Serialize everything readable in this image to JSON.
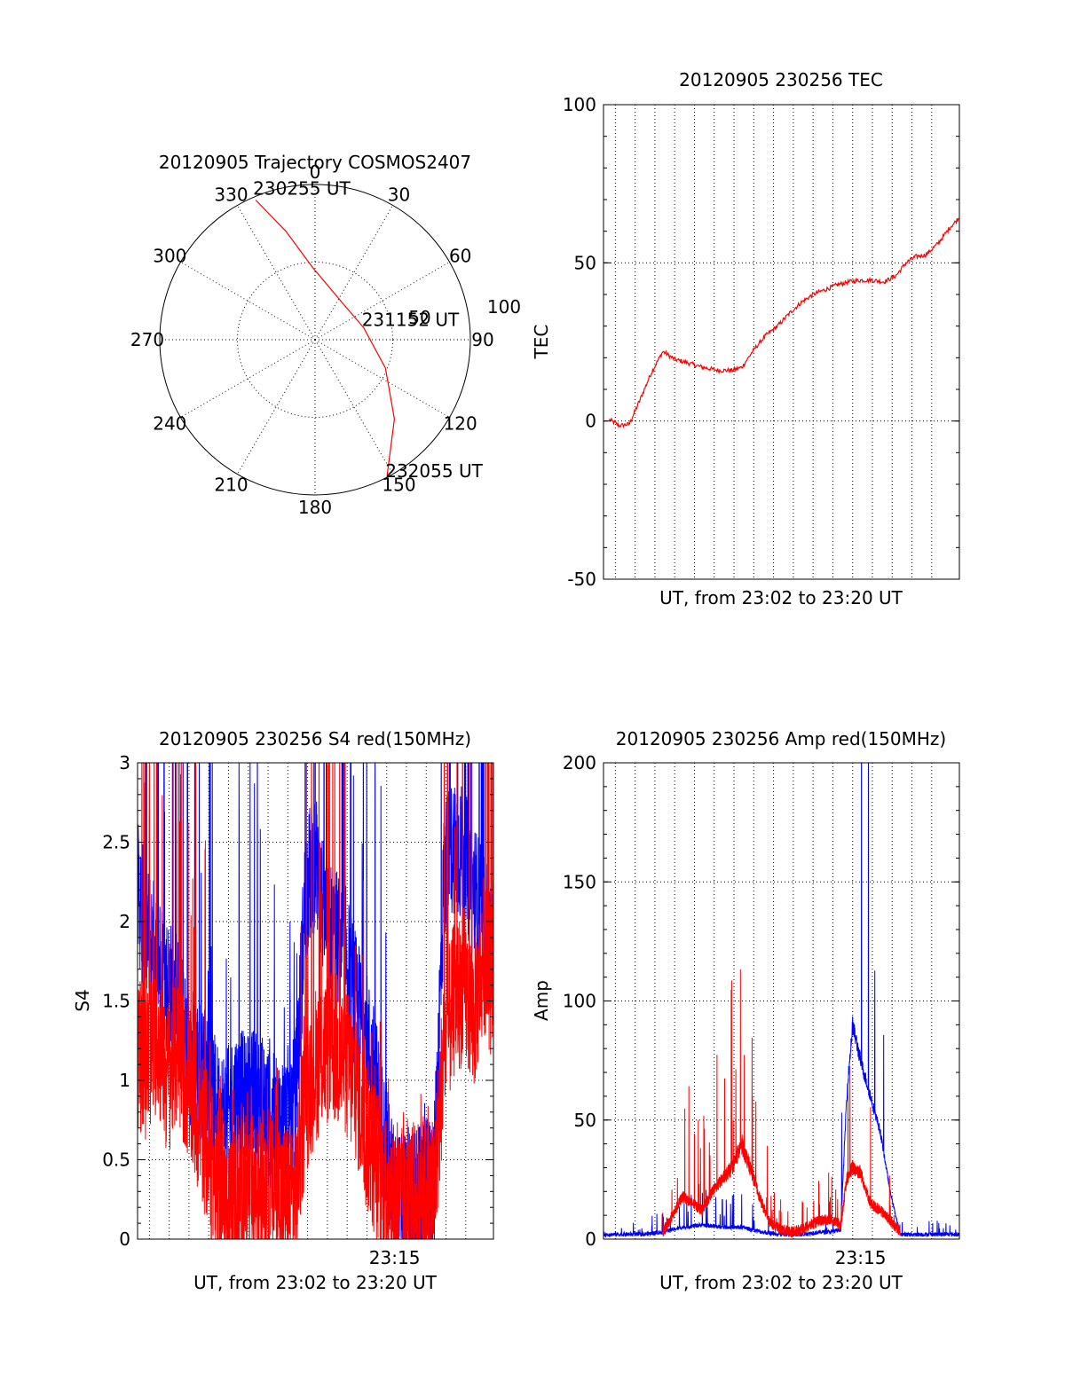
{
  "colors": {
    "red": "#ff0000",
    "blue": "#0000ff",
    "black": "#000000",
    "background": "#ffffff"
  },
  "chart_data": [
    {
      "type": "polar",
      "title": "20120905 Trajectory COSMOS2407",
      "angle_labels": [
        "0",
        "30",
        "60",
        "90",
        "120",
        "150",
        "180",
        "210",
        "240",
        "270",
        "300",
        "330"
      ],
      "radial_labels": [
        "50",
        "100"
      ],
      "grid": true,
      "series": [
        {
          "color": "#ff0000",
          "points": [
            {
              "azimuth": 337,
              "zenith_angle": 88,
              "label": "230255 UT"
            },
            {
              "azimuth": 345,
              "zenith_angle": 65
            },
            {
              "azimuth": 358,
              "zenith_angle": 42
            },
            {
              "azimuth": 45,
              "zenith_angle": 26
            },
            {
              "azimuth": 76,
              "zenith_angle": 29,
              "label": "231152 UT"
            },
            {
              "azimuth": 112,
              "zenith_angle": 44
            },
            {
              "azimuth": 135,
              "zenith_angle": 65
            },
            {
              "azimuth": 152,
              "zenith_angle": 89,
              "label": "232055 UT"
            }
          ]
        }
      ]
    },
    {
      "type": "line",
      "title": "20120905 230256 TEC",
      "xlabel": "UT, from 23:02 to 23:20 UT",
      "ylabel": "TEC",
      "xlim": [
        0,
        18
      ],
      "ylim": [
        -50,
        100
      ],
      "yticks": [
        "100",
        "50",
        "0",
        "-50"
      ],
      "xgrid_count": 18,
      "grid": true,
      "series": [
        {
          "color": "#ff0000",
          "x": [
            0.3,
            0.8,
            1.3,
            1.8,
            2.4,
            3.0,
            3.6,
            4.2,
            5.0,
            5.8,
            6.5,
            7.0,
            7.6,
            8.2,
            8.8,
            9.4,
            10.0,
            10.6,
            11.2,
            11.8,
            12.4,
            13.0,
            13.6,
            14.2,
            14.8,
            15.3,
            15.8,
            16.3,
            16.9,
            17.5,
            17.95
          ],
          "y": [
            0.5,
            -1.5,
            -1,
            6,
            15,
            22,
            19.5,
            18.5,
            17,
            16,
            16,
            17,
            22.5,
            27,
            30,
            34,
            37.5,
            40,
            41.5,
            43,
            44,
            44.5,
            44.5,
            44,
            46,
            50,
            52,
            52.5,
            56,
            61,
            64
          ]
        }
      ]
    },
    {
      "type": "line",
      "title": "20120905 230256 S4 red(150MHz)",
      "xlabel": "UT, from 23:02 to 23:20 UT",
      "ylabel": "S4",
      "xlim": [
        0,
        18
      ],
      "ylim": [
        0,
        3
      ],
      "yticks": [
        "3",
        "2.5",
        "2",
        "1.5",
        "1",
        "0.5",
        "0"
      ],
      "xtick_labels": [
        {
          "x": 13,
          "label": "23:15"
        }
      ],
      "xgrid_count": 18,
      "grid": true,
      "series": [
        {
          "color": "#0000ff",
          "x": [
            0,
            0.5,
            1,
            1.5,
            2,
            2.5,
            3,
            3.5,
            4,
            4.5,
            5,
            5.5,
            6,
            6.5,
            7,
            7.5,
            8,
            8.5,
            9,
            9.5,
            10,
            10.5,
            11,
            11.5,
            12,
            12.5,
            13,
            13.5,
            14,
            14.5,
            15,
            15.5,
            16,
            16.5,
            17,
            17.5,
            18
          ],
          "y": [
            2.2,
            1.9,
            1.8,
            1.6,
            1.5,
            1.2,
            1.1,
            1.0,
            0.8,
            0.75,
            0.9,
            0.85,
            0.9,
            0.8,
            0.7,
            0.75,
            0.9,
            2.2,
            2.4,
            2.0,
            1.9,
            1.8,
            1.5,
            1.3,
            1.0,
            0.6,
            0.25,
            0.2,
            0.25,
            0.3,
            0.35,
            2.3,
            2.5,
            2.4,
            2.2,
            2.0,
            1.8
          ],
          "noise": 0.45
        },
        {
          "color": "#ff0000",
          "x": [
            0,
            0.5,
            1,
            1.5,
            2,
            2.5,
            3,
            3.5,
            4,
            4.5,
            5,
            5.5,
            6,
            6.5,
            7,
            7.5,
            8,
            8.5,
            9,
            9.5,
            10,
            10.5,
            11,
            11.5,
            12,
            12.5,
            13,
            13.5,
            14,
            14.5,
            15,
            15.5,
            16,
            16.5,
            17,
            17.5,
            18
          ],
          "y": [
            1.2,
            1.1,
            1.3,
            1.0,
            1.2,
            1.0,
            0.8,
            0.6,
            0.3,
            0.25,
            0.25,
            0.3,
            0.3,
            0.35,
            0.3,
            0.25,
            0.3,
            0.9,
            1.1,
            1.2,
            1.2,
            1.1,
            1.0,
            0.7,
            0.5,
            0.35,
            0.25,
            0.2,
            0.25,
            0.3,
            0.3,
            1.2,
            1.5,
            1.6,
            1.4,
            1.8,
            1.6
          ],
          "noise": 0.5
        }
      ]
    },
    {
      "type": "line",
      "title": "20120905 230256 Amp red(150MHz)",
      "xlabel": "UT, from 23:02 to 23:20 UT",
      "ylabel": "Amp",
      "xlim": [
        0,
        18
      ],
      "ylim": [
        0,
        200
      ],
      "yticks": [
        "200",
        "150",
        "100",
        "50",
        "0"
      ],
      "xtick_labels": [
        {
          "x": 13,
          "label": "23:15"
        }
      ],
      "xgrid_count": 18,
      "grid": true,
      "series": [
        {
          "color": "#0000ff",
          "x": [
            0,
            1,
            2,
            3,
            3.5,
            4,
            5,
            6,
            7,
            7.5,
            8,
            9,
            10,
            11,
            11.5,
            12,
            12.3,
            12.6,
            13,
            13.5,
            14,
            14.5,
            15,
            16,
            17,
            18
          ],
          "y": [
            2,
            2,
            2,
            3,
            4,
            5,
            6,
            5,
            5,
            4,
            3,
            2,
            2,
            3,
            3,
            4,
            60,
            90,
            75,
            60,
            45,
            20,
            2,
            2,
            2,
            2
          ],
          "noise": 3
        },
        {
          "color": "#ff0000",
          "x": [
            3.0,
            3.5,
            4,
            4.5,
            5,
            5.5,
            6,
            6.5,
            7,
            7.5,
            8,
            8.5,
            9,
            9.5,
            10,
            10.5,
            11,
            11.5,
            12,
            12.3,
            12.6,
            13,
            13.5,
            14,
            14.5,
            15
          ],
          "y": [
            3,
            10,
            18,
            15,
            12,
            20,
            25,
            30,
            40,
            28,
            15,
            6,
            4,
            3,
            4,
            6,
            8,
            8,
            6,
            25,
            30,
            28,
            15,
            12,
            8,
            3
          ],
          "noise": 8
        }
      ]
    }
  ]
}
